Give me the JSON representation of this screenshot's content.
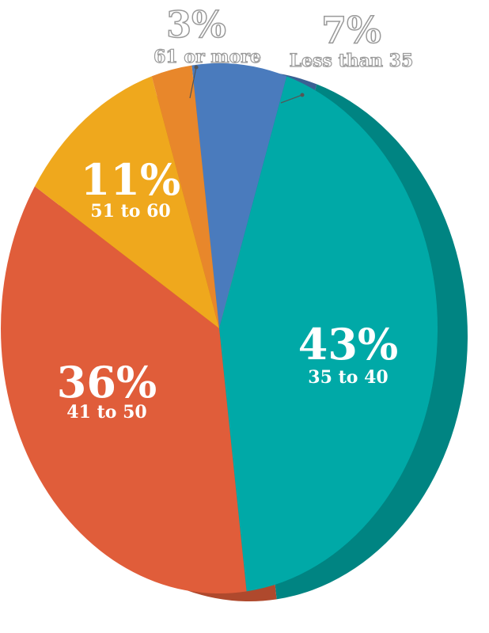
{
  "chart_data": {
    "type": "pie",
    "categories": [
      "Less than 35",
      "35 to 40",
      "41 to 50",
      "51 to 60",
      "61 or more"
    ],
    "values": [
      7,
      43,
      36,
      11,
      3
    ],
    "value_labels": [
      "7%",
      "43%",
      "36%",
      "11%",
      "3%"
    ],
    "colors": [
      "#4a7bbd",
      "#00a9a7",
      "#e05d3a",
      "#efa81d",
      "#e8872b"
    ]
  }
}
